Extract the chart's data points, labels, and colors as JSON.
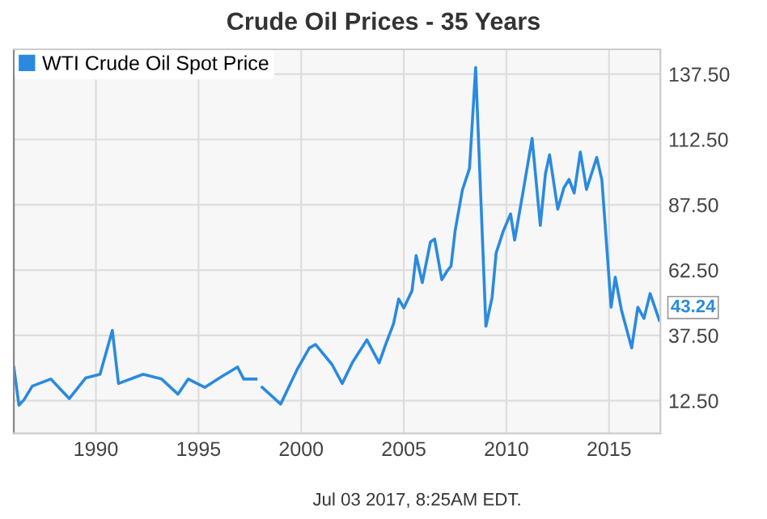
{
  "chart_data": {
    "type": "line",
    "title": "Crude Oil Prices - 35 Years",
    "x": [
      1986.0,
      1986.25,
      1986.5,
      1986.9,
      1987.8,
      1988.7,
      1989.5,
      1990.2,
      1990.8,
      1991.1,
      1992.3,
      1993.2,
      1994.0,
      1994.5,
      1995.3,
      1996.1,
      1996.9,
      1997.2,
      1997.8,
      1997.95,
      1998.1,
      1999.0,
      1999.8,
      2000.4,
      2000.7,
      2001.5,
      2002.0,
      2002.5,
      2003.2,
      2003.8,
      2004.1,
      2004.5,
      2004.75,
      2005.0,
      2005.4,
      2005.6,
      2005.9,
      2006.3,
      2006.5,
      2006.85,
      2007.1,
      2007.3,
      2007.5,
      2007.85,
      2008.2,
      2008.5,
      2009.0,
      2009.3,
      2009.5,
      2009.85,
      2010.2,
      2010.4,
      2010.8,
      2011.25,
      2011.65,
      2011.9,
      2012.1,
      2012.5,
      2012.8,
      2013.05,
      2013.3,
      2013.6,
      2013.9,
      2014.4,
      2014.65,
      2015.1,
      2015.3,
      2015.6,
      2016.1,
      2016.4,
      2016.7,
      2017.0,
      2017.45
    ],
    "series": [
      {
        "name": "WTI Crude Oil Spot Price",
        "color": "#2a8ae0",
        "values": [
          25.4,
          10.8,
          12.9,
          18.1,
          20.8,
          13.3,
          21.2,
          22.6,
          39.4,
          19.1,
          22.6,
          20.8,
          15,
          20.8,
          17.6,
          21.6,
          25.4,
          20.8,
          20.8,
          null,
          17.6,
          11.2,
          24.4,
          32.7,
          34,
          26.4,
          19.1,
          27.2,
          35.8,
          27,
          33.7,
          42,
          51.4,
          48,
          54.6,
          68.1,
          57.7,
          73.3,
          74.4,
          58.8,
          62,
          64,
          77.5,
          93,
          101.4,
          140,
          41,
          52,
          69.1,
          77.5,
          84,
          74,
          92,
          112.9,
          79.6,
          99.4,
          106.6,
          85.8,
          94,
          97.2,
          92,
          107.7,
          93.4,
          105.6,
          97,
          48.3,
          59.8,
          47.3,
          32.7,
          48.3,
          44,
          53.5,
          43.24
        ],
        "value_labels": [
          null,
          null,
          null,
          null,
          null,
          null,
          null,
          null,
          null,
          null,
          null,
          null,
          null,
          null,
          null,
          null,
          null,
          null,
          null,
          null,
          null,
          null,
          null,
          null,
          null,
          null,
          null,
          null,
          null,
          null,
          null,
          null,
          null,
          null,
          null,
          null,
          null,
          null,
          null,
          null,
          null,
          null,
          null,
          null,
          null,
          null,
          null,
          null,
          null,
          null,
          null,
          null,
          null,
          null,
          null,
          null,
          null,
          null,
          null,
          null,
          null,
          null,
          null,
          null,
          null,
          null,
          null,
          null,
          null,
          null,
          null,
          null,
          "43.24"
        ]
      }
    ],
    "xlim": [
      1986,
      2017.5
    ],
    "xticks": [
      1990,
      1995,
      2000,
      2005,
      2010,
      2015
    ],
    "ylim": [
      0,
      147
    ],
    "yticks": [
      {
        "value": 12.5,
        "label": "12.50"
      },
      {
        "value": 37.5,
        "label": "37.50"
      },
      {
        "value": 62.5,
        "label": "62.50"
      },
      {
        "value": 87.5,
        "label": "87.50"
      },
      {
        "value": 112.5,
        "label": "112.50"
      },
      {
        "value": 137.5,
        "label": "137.50"
      }
    ],
    "grid": true,
    "legend": "top left",
    "marker": "none",
    "line_style": "solid",
    "annotations": [
      "Jul 03 2017, 8:25AM EDT."
    ]
  }
}
